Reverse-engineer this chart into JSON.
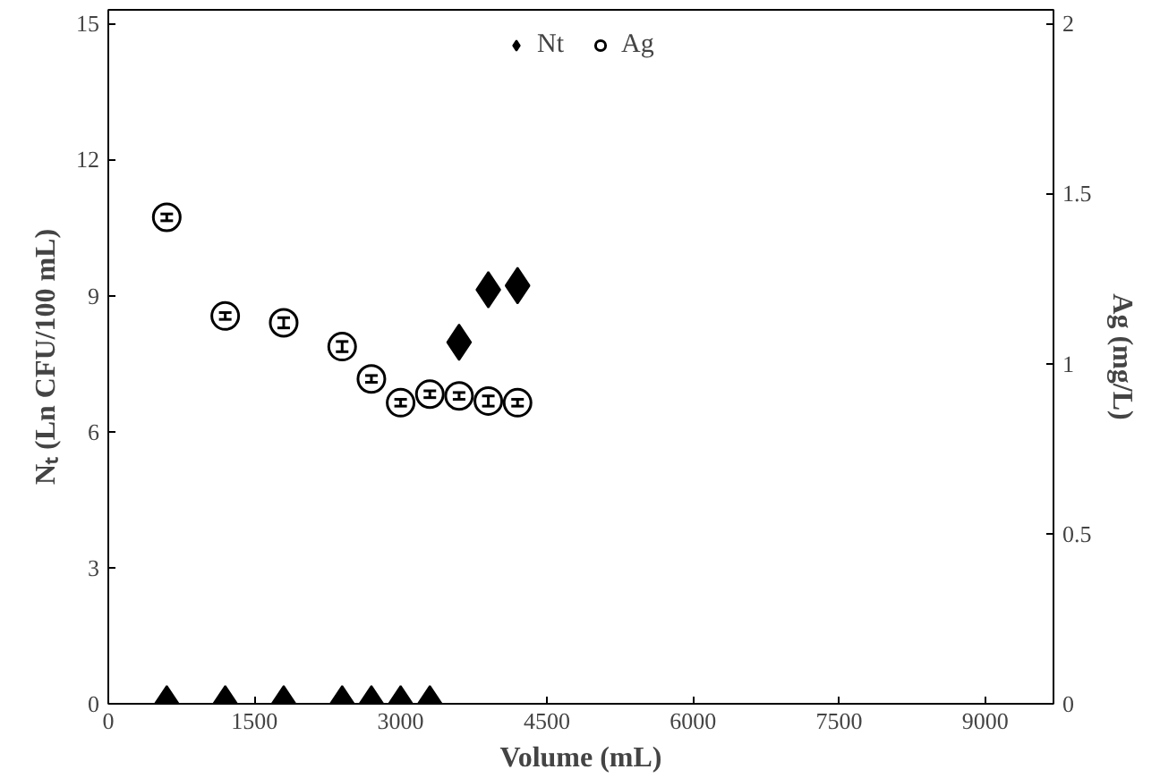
{
  "chart_data": {
    "type": "scatter",
    "xlabel": "Volume (mL)",
    "ylabel": "Nₜ (Ln CFU/100 mL)",
    "y2label": "Ag (mg/L)",
    "xlim": [
      0,
      9700
    ],
    "xticks": [
      0,
      1500,
      3000,
      4500,
      6000,
      7500,
      9000
    ],
    "ylim": [
      0,
      15.3
    ],
    "yticks": [
      0,
      3,
      6,
      9,
      12,
      15
    ],
    "y2lim": [
      0,
      2.04
    ],
    "y2ticks": [
      0,
      0.5,
      1,
      1.5,
      2
    ],
    "legend": "top",
    "grid": false,
    "series": [
      {
        "name": "Nt",
        "color": "#000000",
        "marker": "diamond",
        "x": [
          600,
          1200,
          1800,
          2400,
          2700,
          3000,
          3300,
          3600,
          3900,
          4200
        ],
        "values": [
          0,
          0,
          0,
          0,
          0,
          0,
          0,
          7.97,
          9.13,
          9.22
        ]
      },
      {
        "name": "Ag",
        "color": "#000000",
        "marker": "circle",
        "axis": "y2",
        "x": [
          600,
          1200,
          1800,
          2400,
          2700,
          3000,
          3300,
          3600,
          3900,
          4200
        ],
        "values": [
          1.43,
          1.14,
          1.12,
          1.05,
          0.955,
          0.885,
          0.91,
          0.905,
          0.89,
          0.885
        ],
        "errors": [
          0.01,
          0.01,
          0.015,
          0.015,
          0.01,
          0.01,
          0.01,
          0.01,
          0.015,
          0.01
        ]
      }
    ]
  }
}
